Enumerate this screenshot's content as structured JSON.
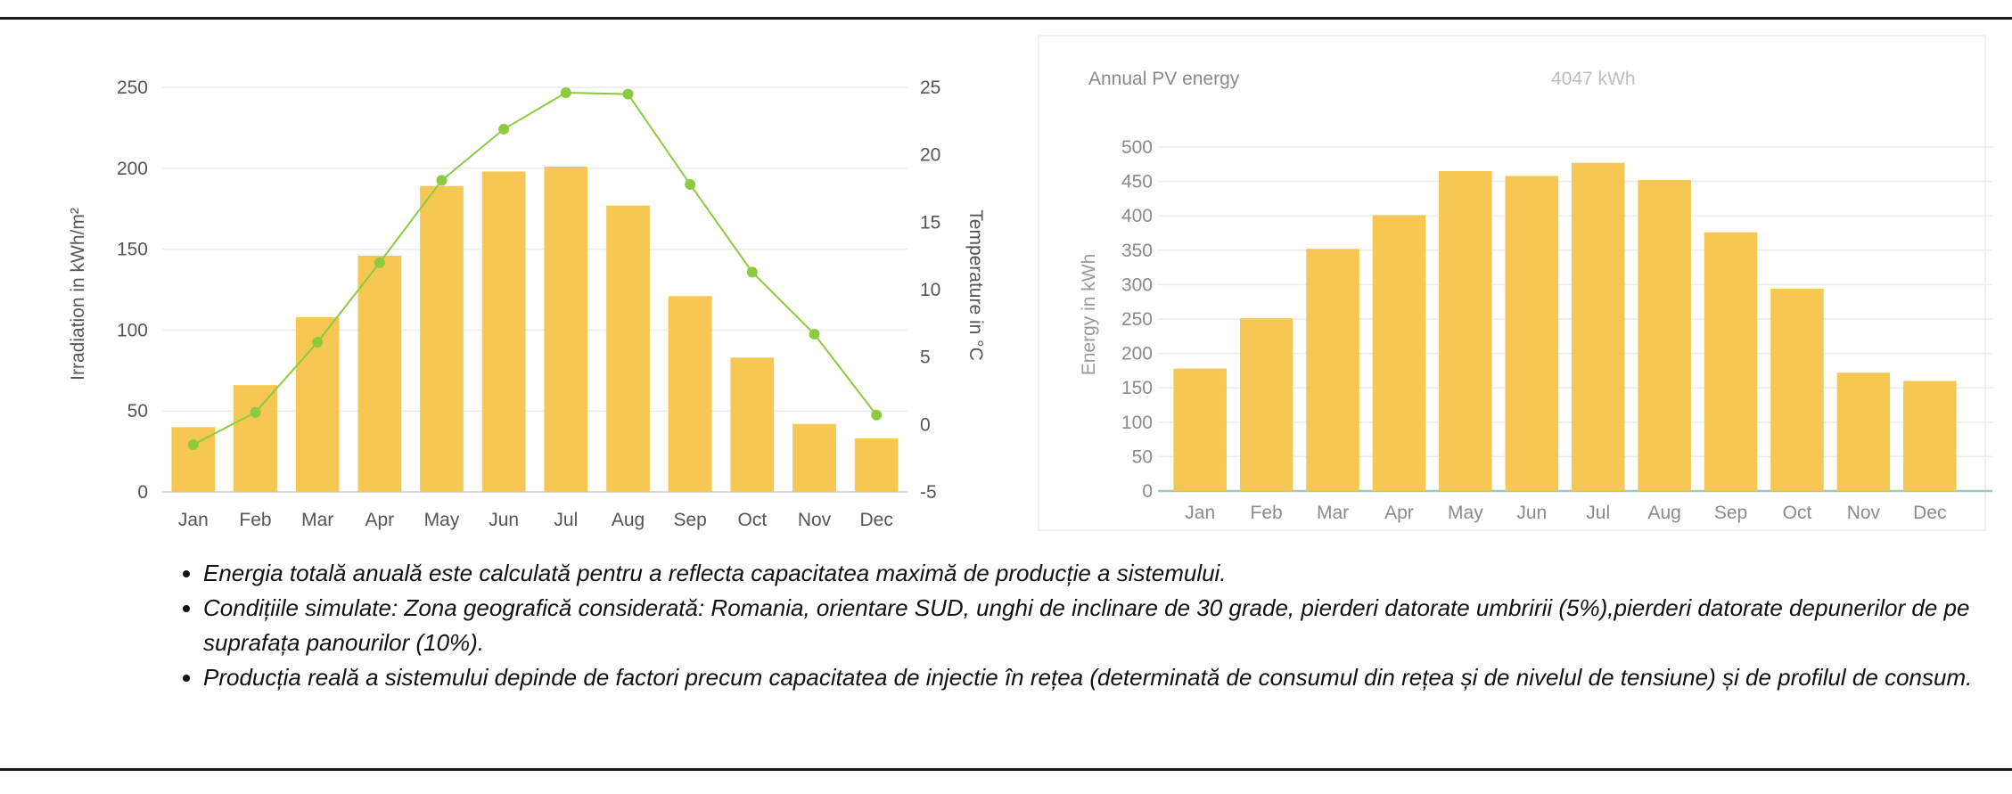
{
  "chart_data": [
    {
      "type": "bar",
      "categories": [
        "Jan",
        "Feb",
        "Mar",
        "Apr",
        "May",
        "Jun",
        "Jul",
        "Aug",
        "Sep",
        "Oct",
        "Nov",
        "Dec"
      ],
      "series": [
        {
          "name": "",
          "type": "bar",
          "axis": "left",
          "values": [
            40,
            66,
            108,
            146,
            189,
            198,
            201,
            177,
            121,
            83,
            42,
            33
          ]
        },
        {
          "name": "",
          "type": "line",
          "axis": "right",
          "values": [
            -1.5,
            0.9,
            6.1,
            12.0,
            18.1,
            21.9,
            24.6,
            24.5,
            17.8,
            11.3,
            6.7,
            0.7
          ]
        }
      ],
      "ylabel": "Irradiation in kWh/m²",
      "y2label": "Temperature in °C",
      "ylim": [
        0,
        250
      ],
      "y2lim": [
        -5,
        25
      ],
      "yticks": [
        "0",
        "50",
        "100",
        "150",
        "200",
        "250"
      ],
      "y2ticks": [
        "-5",
        "0",
        "5",
        "10",
        "15",
        "20",
        "25"
      ],
      "bar_color": "#F5C54A",
      "line_color": "#8CCB3F",
      "grid": true,
      "legend": "none"
    },
    {
      "type": "bar",
      "header_label": "Annual PV energy",
      "header_value": "4047 kWh",
      "categories": [
        "Jan",
        "Feb",
        "Mar",
        "Apr",
        "May",
        "Jun",
        "Jul",
        "Aug",
        "Sep",
        "Oct",
        "Nov",
        "Dec"
      ],
      "values": [
        178,
        251,
        352,
        401,
        465,
        458,
        477,
        452,
        376,
        294,
        172,
        160
      ],
      "ylabel": "Energy in kWh",
      "ylim": [
        0,
        500
      ],
      "yticks": [
        "0",
        "50",
        "100",
        "150",
        "200",
        "250",
        "300",
        "350",
        "400",
        "450",
        "500"
      ],
      "bar_color": "#F5C54A",
      "grid": true,
      "legend": "none"
    }
  ],
  "notes": [
    "Energia totală anuală este calculată pentru a reflecta capacitatea maximă de producție a sistemului.",
    "Condițiile simulate: Zona geografică considerată: Romania, orientare SUD, unghi de inclinare de 30 grade, pierderi datorate umbririi (5%),pierderi datorate depunerilor de pe suprafața panourilor (10%).",
    "Producția reală a sistemului depinde de factori precum capacitatea de injectie în rețea (determinată de consumul din rețea și de nivelul de tensiune) și de profilul de consum."
  ]
}
